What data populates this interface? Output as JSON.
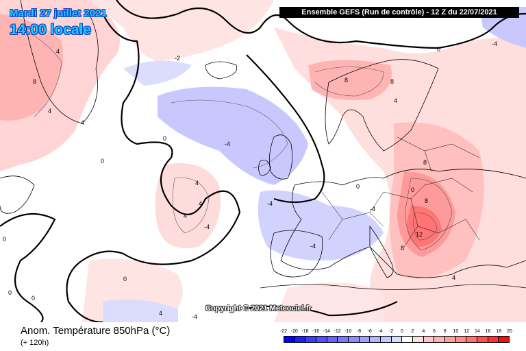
{
  "header": {
    "model_title": "Ensemble GEFS  (Run de contrôle)  -  12 Z du 22/07/2021",
    "date": "Mardi 27 juillet 2021",
    "local_time": "14:00 locale"
  },
  "copyright": "Copyright © 2021 Meteociel.fr",
  "footer": {
    "variable": "Anom. Température 850hPa (°C)",
    "lead_time": "(+ 120h)"
  },
  "colorbar": {
    "labels": [
      "-22",
      "-20",
      "-18",
      "-16",
      "-14",
      "-12",
      "-10",
      "-8",
      "-6",
      "-4",
      "-2",
      "0",
      "2",
      "4",
      "6",
      "8",
      "10",
      "12",
      "14",
      "16",
      "18",
      "20"
    ],
    "colors": [
      "#0000ff",
      "#1e1eff",
      "#3c3cff",
      "#5050ff",
      "#6464ff",
      "#7878ff",
      "#8c8cff",
      "#a0a0ff",
      "#b4b4ff",
      "#c8c8ff",
      "#dcdcff",
      "#ffffff",
      "#ffe0e0",
      "#ffc8c8",
      "#ffb4b4",
      "#ffa0a0",
      "#ff8c8c",
      "#ff7070",
      "#ff5050",
      "#ff3030",
      "#f01010"
    ]
  },
  "map_labels": [
    "4",
    "8",
    "4",
    "4",
    "0",
    "0",
    "-2",
    "0",
    "-4",
    "-4",
    "8",
    "8",
    "4",
    "0",
    "0",
    "8",
    "8",
    "12",
    "8",
    "4",
    "4",
    "-4",
    "-4",
    "-4",
    "-4",
    "4",
    "4",
    "0",
    "0",
    "0",
    "0",
    "-4",
    "4"
  ]
}
